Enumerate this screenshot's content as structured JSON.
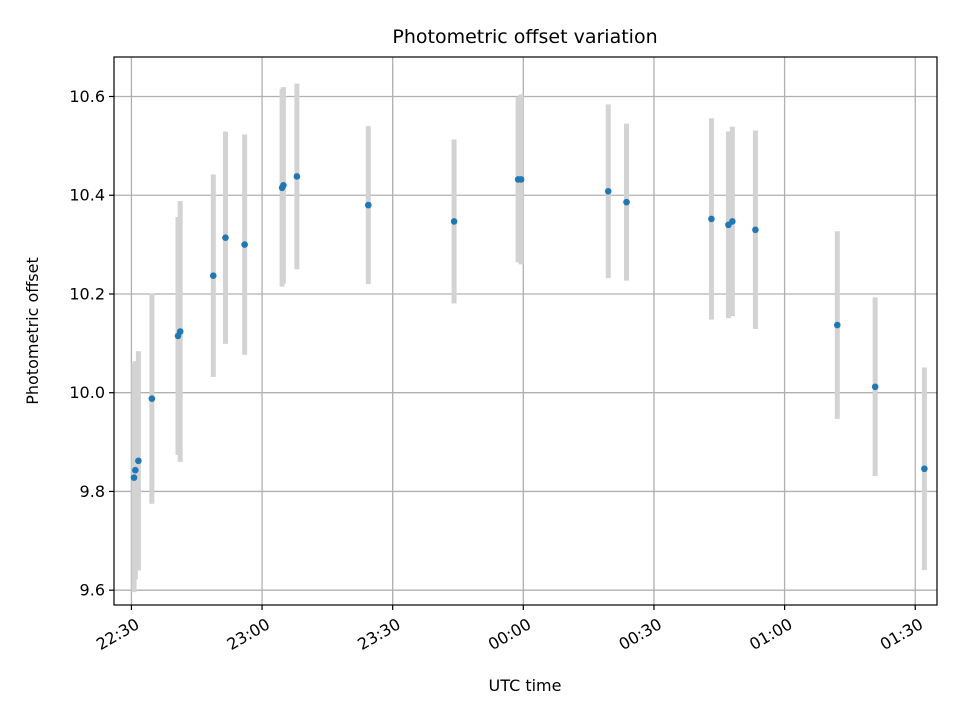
{
  "chart_data": {
    "type": "scatter",
    "title": "Photometric offset variation",
    "xlabel": "UTC time",
    "ylabel": "Photometric offset",
    "xlim": [
      "22:26",
      "01:35"
    ],
    "ylim": [
      9.57,
      10.68
    ],
    "x_ticks": [
      "22:30",
      "23:00",
      "23:30",
      "00:00",
      "00:30",
      "01:00",
      "01:30"
    ],
    "y_ticks": [
      "9.6",
      "9.8",
      "10.0",
      "10.2",
      "10.4",
      "10.6"
    ],
    "grid": true,
    "colors": {
      "points": "#1f77b4",
      "errorbars": "#d3d3d3",
      "grid": "#b0b0b0"
    },
    "points": [
      {
        "time": "22:30:36",
        "value": 9.828,
        "err": 0.232
      },
      {
        "time": "22:30:54",
        "value": 9.843,
        "err": 0.221
      },
      {
        "time": "22:31:36",
        "value": 9.862,
        "err": 0.222
      },
      {
        "time": "22:34:42",
        "value": 9.988,
        "err": 0.213
      },
      {
        "time": "22:40:42",
        "value": 10.115,
        "err": 0.241
      },
      {
        "time": "22:41:12",
        "value": 10.124,
        "err": 0.264
      },
      {
        "time": "22:48:48",
        "value": 10.237,
        "err": 0.205
      },
      {
        "time": "22:51:36",
        "value": 10.314,
        "err": 0.215
      },
      {
        "time": "22:56:00",
        "value": 10.3,
        "err": 0.223
      },
      {
        "time": "23:04:36",
        "value": 10.415,
        "err": 0.2
      },
      {
        "time": "23:04:54",
        "value": 10.42,
        "err": 0.199
      },
      {
        "time": "23:08:00",
        "value": 10.438,
        "err": 0.188
      },
      {
        "time": "23:24:24",
        "value": 10.38,
        "err": 0.16
      },
      {
        "time": "23:44:06",
        "value": 10.347,
        "err": 0.166
      },
      {
        "time": "23:58:48",
        "value": 10.432,
        "err": 0.168
      },
      {
        "time": "23:59:30",
        "value": 10.432,
        "err": 0.172
      },
      {
        "time": "00:19:30",
        "value": 10.408,
        "err": 0.176
      },
      {
        "time": "00:23:42",
        "value": 10.386,
        "err": 0.159
      },
      {
        "time": "00:43:12",
        "value": 10.352,
        "err": 0.204
      },
      {
        "time": "00:47:06",
        "value": 10.34,
        "err": 0.189
      },
      {
        "time": "00:48:00",
        "value": 10.347,
        "err": 0.192
      },
      {
        "time": "00:53:18",
        "value": 10.33,
        "err": 0.201
      },
      {
        "time": "01:12:06",
        "value": 10.137,
        "err": 0.19
      },
      {
        "time": "01:20:48",
        "value": 10.012,
        "err": 0.181
      },
      {
        "time": "01:32:06",
        "value": 9.846,
        "err": 0.205
      }
    ]
  }
}
